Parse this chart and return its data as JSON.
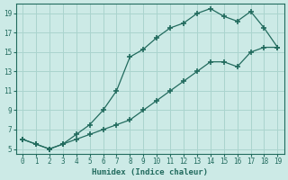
{
  "title": "",
  "xlabel": "Humidex (Indice chaleur)",
  "line1_x": [
    0,
    1,
    2,
    3,
    4,
    5,
    6,
    7,
    8,
    9,
    10,
    11,
    12,
    13,
    14,
    15,
    16,
    17,
    18,
    19
  ],
  "line1_y": [
    6,
    5.5,
    5,
    5.5,
    6.5,
    7.5,
    9,
    11,
    14.5,
    15.3,
    16.5,
    17.5,
    18,
    19,
    19.5,
    18.7,
    18.2,
    19.2,
    17.5,
    15.5
  ],
  "line2_x": [
    0,
    1,
    2,
    3,
    4,
    5,
    6,
    7,
    8,
    9,
    10,
    11,
    12,
    13,
    14,
    15,
    16,
    17,
    18,
    19
  ],
  "line2_y": [
    6,
    5.5,
    5,
    5.5,
    6.0,
    6.5,
    7.0,
    7.5,
    8.0,
    9.0,
    10.0,
    11.0,
    12.0,
    13.0,
    14.0,
    14.0,
    13.5,
    15.0,
    15.5,
    15.5
  ],
  "line_color": "#226b5e",
  "bg_color": "#cceae6",
  "grid_color": "#aad4ce",
  "ylim": [
    4.5,
    20
  ],
  "xlim": [
    -0.5,
    19.5
  ],
  "yticks": [
    5,
    7,
    9,
    11,
    13,
    15,
    17,
    19
  ],
  "xticks": [
    0,
    1,
    2,
    3,
    4,
    5,
    6,
    7,
    8,
    9,
    10,
    11,
    12,
    13,
    14,
    15,
    16,
    17,
    18,
    19
  ]
}
